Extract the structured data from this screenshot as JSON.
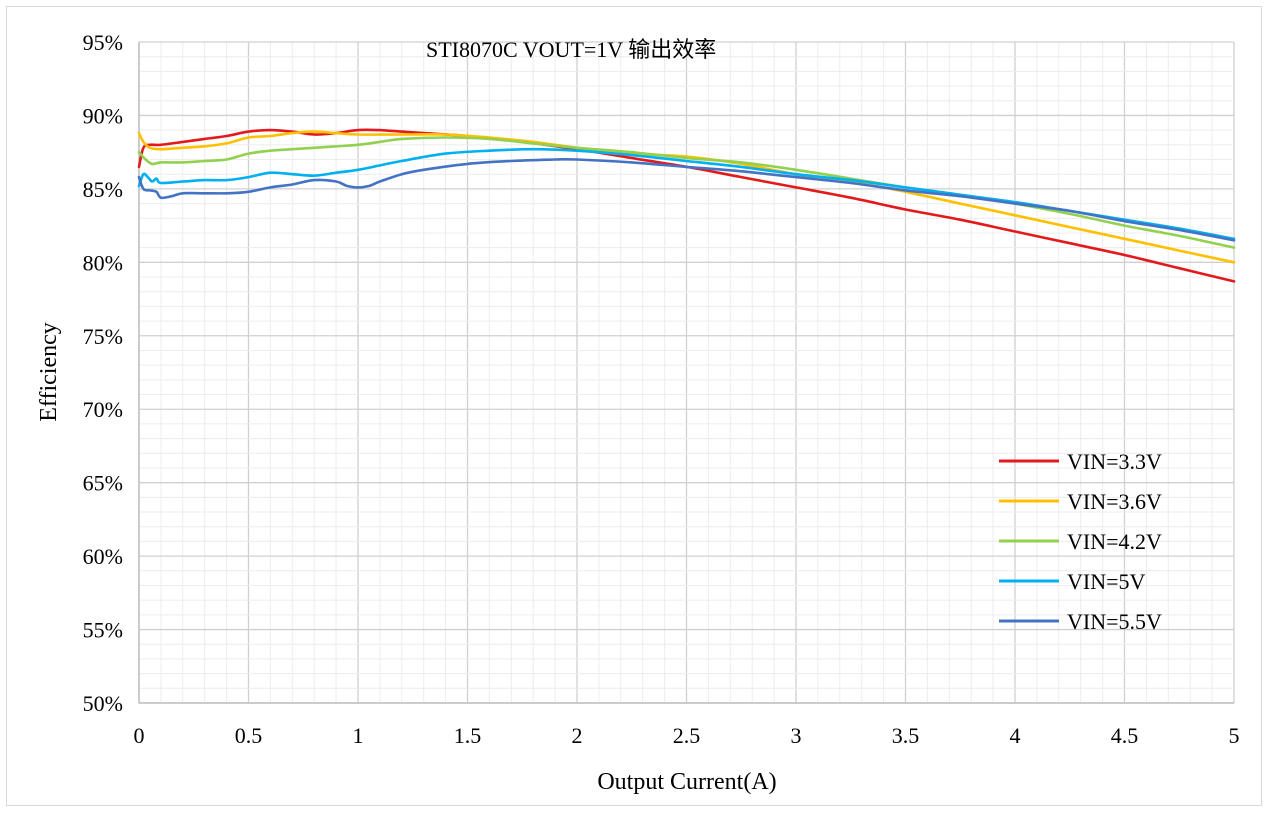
{
  "chart_data": {
    "type": "line",
    "title": "STI8070C VOUT=1V 输出效率",
    "xlabel": "Output Current(A)",
    "ylabel": "Efficiency",
    "xlim": [
      0,
      5
    ],
    "ylim": [
      50,
      95
    ],
    "x_ticks": [
      "0",
      "0.5",
      "1",
      "1.5",
      "2",
      "2.5",
      "3",
      "3.5",
      "4",
      "4.5",
      "5"
    ],
    "y_ticks": [
      "50%",
      "55%",
      "60%",
      "65%",
      "70%",
      "75%",
      "80%",
      "85%",
      "90%",
      "95%"
    ],
    "grid": true,
    "legend_position": "bottom-right",
    "series": [
      {
        "name": "VIN=3.3V",
        "color": "#e31a1c",
        "points": [
          [
            0,
            86.5
          ],
          [
            0.02,
            87.8
          ],
          [
            0.05,
            88.0
          ],
          [
            0.1,
            88.0
          ],
          [
            0.2,
            88.2
          ],
          [
            0.3,
            88.4
          ],
          [
            0.4,
            88.6
          ],
          [
            0.5,
            88.9
          ],
          [
            0.6,
            89.0
          ],
          [
            0.7,
            88.9
          ],
          [
            0.8,
            88.7
          ],
          [
            0.9,
            88.8
          ],
          [
            1.0,
            89.0
          ],
          [
            1.1,
            89.0
          ],
          [
            1.2,
            88.9
          ],
          [
            1.3,
            88.8
          ],
          [
            1.5,
            88.6
          ],
          [
            1.7,
            88.3
          ],
          [
            2.0,
            87.7
          ],
          [
            2.25,
            87.1
          ],
          [
            2.5,
            86.5
          ],
          [
            2.75,
            85.8
          ],
          [
            3.0,
            85.1
          ],
          [
            3.25,
            84.4
          ],
          [
            3.5,
            83.6
          ],
          [
            3.75,
            82.9
          ],
          [
            4.0,
            82.1
          ],
          [
            4.25,
            81.3
          ],
          [
            4.5,
            80.5
          ],
          [
            4.75,
            79.6
          ],
          [
            5.0,
            78.7
          ]
        ]
      },
      {
        "name": "VIN=3.6V",
        "color": "#ffc000",
        "points": [
          [
            0,
            88.8
          ],
          [
            0.02,
            88.2
          ],
          [
            0.05,
            87.8
          ],
          [
            0.1,
            87.7
          ],
          [
            0.2,
            87.8
          ],
          [
            0.3,
            87.9
          ],
          [
            0.4,
            88.1
          ],
          [
            0.5,
            88.5
          ],
          [
            0.6,
            88.6
          ],
          [
            0.7,
            88.8
          ],
          [
            0.8,
            88.9
          ],
          [
            0.9,
            88.8
          ],
          [
            1.0,
            88.7
          ],
          [
            1.2,
            88.7
          ],
          [
            1.4,
            88.7
          ],
          [
            1.6,
            88.5
          ],
          [
            1.8,
            88.2
          ],
          [
            2.0,
            87.8
          ],
          [
            2.25,
            87.4
          ],
          [
            2.5,
            87.2
          ],
          [
            2.75,
            86.7
          ],
          [
            3.0,
            86.0
          ],
          [
            3.25,
            85.5
          ],
          [
            3.5,
            84.8
          ],
          [
            3.75,
            84.0
          ],
          [
            4.0,
            83.2
          ],
          [
            4.25,
            82.4
          ],
          [
            4.5,
            81.6
          ],
          [
            4.75,
            80.8
          ],
          [
            5.0,
            80.0
          ]
        ]
      },
      {
        "name": "VIN=4.2V",
        "color": "#92d050",
        "points": [
          [
            0,
            87.5
          ],
          [
            0.03,
            87.0
          ],
          [
            0.06,
            86.7
          ],
          [
            0.1,
            86.8
          ],
          [
            0.2,
            86.8
          ],
          [
            0.3,
            86.9
          ],
          [
            0.4,
            87.0
          ],
          [
            0.5,
            87.4
          ],
          [
            0.6,
            87.6
          ],
          [
            0.7,
            87.7
          ],
          [
            0.8,
            87.8
          ],
          [
            0.9,
            87.9
          ],
          [
            1.0,
            88.0
          ],
          [
            1.1,
            88.2
          ],
          [
            1.2,
            88.4
          ],
          [
            1.4,
            88.5
          ],
          [
            1.6,
            88.4
          ],
          [
            1.8,
            88.1
          ],
          [
            2.0,
            87.8
          ],
          [
            2.25,
            87.5
          ],
          [
            2.5,
            87.1
          ],
          [
            2.75,
            86.8
          ],
          [
            3.0,
            86.3
          ],
          [
            3.25,
            85.7
          ],
          [
            3.5,
            85.1
          ],
          [
            3.75,
            84.6
          ],
          [
            4.0,
            84.0
          ],
          [
            4.25,
            83.3
          ],
          [
            4.5,
            82.5
          ],
          [
            4.75,
            81.8
          ],
          [
            5.0,
            81.0
          ]
        ]
      },
      {
        "name": "VIN=5V",
        "color": "#00b0f0",
        "points": [
          [
            0,
            85.2
          ],
          [
            0.02,
            86.0
          ],
          [
            0.04,
            85.8
          ],
          [
            0.06,
            85.5
          ],
          [
            0.08,
            85.7
          ],
          [
            0.1,
            85.4
          ],
          [
            0.2,
            85.5
          ],
          [
            0.3,
            85.6
          ],
          [
            0.4,
            85.6
          ],
          [
            0.5,
            85.8
          ],
          [
            0.6,
            86.1
          ],
          [
            0.7,
            86.0
          ],
          [
            0.8,
            85.9
          ],
          [
            0.9,
            86.1
          ],
          [
            1.0,
            86.3
          ],
          [
            1.1,
            86.6
          ],
          [
            1.2,
            86.9
          ],
          [
            1.4,
            87.4
          ],
          [
            1.6,
            87.6
          ],
          [
            1.8,
            87.7
          ],
          [
            2.0,
            87.6
          ],
          [
            2.25,
            87.3
          ],
          [
            2.5,
            86.9
          ],
          [
            2.75,
            86.5
          ],
          [
            3.0,
            86.0
          ],
          [
            3.25,
            85.6
          ],
          [
            3.5,
            85.1
          ],
          [
            3.75,
            84.6
          ],
          [
            4.0,
            84.1
          ],
          [
            4.25,
            83.5
          ],
          [
            4.5,
            82.9
          ],
          [
            4.75,
            82.3
          ],
          [
            5.0,
            81.6
          ]
        ]
      },
      {
        "name": "VIN=5.5V",
        "color": "#4472c4",
        "points": [
          [
            0,
            85.8
          ],
          [
            0.02,
            85.0
          ],
          [
            0.05,
            84.9
          ],
          [
            0.08,
            84.8
          ],
          [
            0.1,
            84.4
          ],
          [
            0.15,
            84.5
          ],
          [
            0.2,
            84.7
          ],
          [
            0.3,
            84.7
          ],
          [
            0.4,
            84.7
          ],
          [
            0.5,
            84.8
          ],
          [
            0.6,
            85.1
          ],
          [
            0.7,
            85.3
          ],
          [
            0.8,
            85.6
          ],
          [
            0.9,
            85.5
          ],
          [
            0.95,
            85.2
          ],
          [
            1.0,
            85.1
          ],
          [
            1.05,
            85.2
          ],
          [
            1.1,
            85.5
          ],
          [
            1.2,
            86.0
          ],
          [
            1.3,
            86.3
          ],
          [
            1.5,
            86.7
          ],
          [
            1.7,
            86.9
          ],
          [
            1.9,
            87.0
          ],
          [
            2.0,
            87.0
          ],
          [
            2.25,
            86.8
          ],
          [
            2.5,
            86.5
          ],
          [
            2.75,
            86.2
          ],
          [
            3.0,
            85.8
          ],
          [
            3.25,
            85.4
          ],
          [
            3.5,
            84.9
          ],
          [
            3.75,
            84.5
          ],
          [
            4.0,
            84.0
          ],
          [
            4.25,
            83.5
          ],
          [
            4.5,
            82.8
          ],
          [
            4.75,
            82.2
          ],
          [
            5.0,
            81.5
          ]
        ]
      }
    ]
  }
}
